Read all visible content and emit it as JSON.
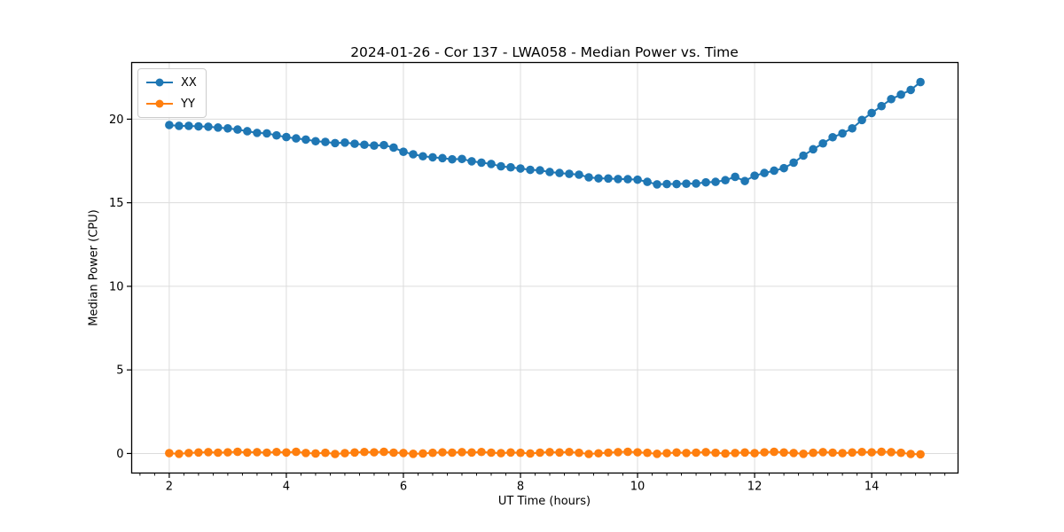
{
  "chart_data": {
    "type": "line",
    "title": "2024-01-26 - Cor 137 - LWA058 - Median Power vs. Time",
    "xlabel": "UT Time (hours)",
    "ylabel": "Median Power (CPU)",
    "xlim": [
      1.358,
      15.475
    ],
    "ylim": [
      -1.17,
      23.39
    ],
    "xticks": [
      2,
      4,
      6,
      8,
      10,
      12,
      14
    ],
    "yticks": [
      0,
      5,
      10,
      15,
      20
    ],
    "x_minor_step": 0.25,
    "grid": true,
    "grid_color": "#dcdcdc",
    "spine_color": "#000000",
    "legend_position": "upper-left",
    "marker": "circle",
    "x": [
      2,
      2.167,
      2.333,
      2.5,
      2.667,
      2.833,
      3,
      3.167,
      3.333,
      3.5,
      3.667,
      3.833,
      4,
      4.167,
      4.333,
      4.5,
      4.667,
      4.833,
      5,
      5.167,
      5.333,
      5.5,
      5.667,
      5.833,
      6,
      6.167,
      6.333,
      6.5,
      6.667,
      6.833,
      7,
      7.167,
      7.333,
      7.5,
      7.667,
      7.833,
      8,
      8.167,
      8.333,
      8.5,
      8.667,
      8.833,
      9,
      9.167,
      9.333,
      9.5,
      9.667,
      9.833,
      10,
      10.167,
      10.333,
      10.5,
      10.667,
      10.833,
      11,
      11.167,
      11.333,
      11.5,
      11.667,
      11.833,
      12,
      12.167,
      12.333,
      12.5,
      12.667,
      12.833,
      13,
      13.167,
      13.333,
      13.5,
      13.667,
      13.833,
      14,
      14.167,
      14.333,
      14.5,
      14.667,
      14.833
    ],
    "series": [
      {
        "name": "XX",
        "color": "#1f77b4",
        "values": [
          19.65,
          19.6,
          19.6,
          19.57,
          19.55,
          19.5,
          19.45,
          19.38,
          19.28,
          19.18,
          19.15,
          19.03,
          18.93,
          18.85,
          18.78,
          18.68,
          18.64,
          18.57,
          18.6,
          18.53,
          18.47,
          18.42,
          18.45,
          18.3,
          18.05,
          17.9,
          17.78,
          17.72,
          17.67,
          17.6,
          17.62,
          17.48,
          17.4,
          17.32,
          17.18,
          17.12,
          17.05,
          16.97,
          16.94,
          16.84,
          16.78,
          16.73,
          16.68,
          16.52,
          16.46,
          16.45,
          16.42,
          16.41,
          16.38,
          16.25,
          16.1,
          16.12,
          16.12,
          16.14,
          16.15,
          16.22,
          16.25,
          16.35,
          16.55,
          16.3,
          16.62,
          16.78,
          16.92,
          17.07,
          17.4,
          17.82,
          18.2,
          18.55,
          18.92,
          19.15,
          19.45,
          19.95,
          20.37,
          20.78,
          21.2,
          21.47,
          21.75,
          22.22
        ]
      },
      {
        "name": "YY",
        "color": "#ff7f0e",
        "values": [
          0.02,
          -0.02,
          0.03,
          0.06,
          0.08,
          0.05,
          0.07,
          0.1,
          0.06,
          0.08,
          0.05,
          0.09,
          0.06,
          0.1,
          0.03,
          0.0,
          0.04,
          -0.03,
          0.02,
          0.06,
          0.09,
          0.07,
          0.1,
          0.05,
          0.03,
          -0.02,
          0.0,
          0.04,
          0.07,
          0.05,
          0.08,
          0.06,
          0.09,
          0.05,
          0.02,
          0.06,
          0.04,
          0.0,
          0.05,
          0.08,
          0.06,
          0.09,
          0.04,
          -0.03,
          0.01,
          0.05,
          0.08,
          0.1,
          0.07,
          0.04,
          -0.02,
          0.02,
          0.06,
          0.03,
          0.05,
          0.08,
          0.04,
          0.0,
          0.03,
          0.06,
          0.02,
          0.07,
          0.1,
          0.06,
          0.03,
          -0.02,
          0.04,
          0.08,
          0.05,
          0.02,
          0.06,
          0.09,
          0.07,
          0.1,
          0.08,
          0.04,
          -0.03,
          -0.05
        ]
      }
    ]
  }
}
